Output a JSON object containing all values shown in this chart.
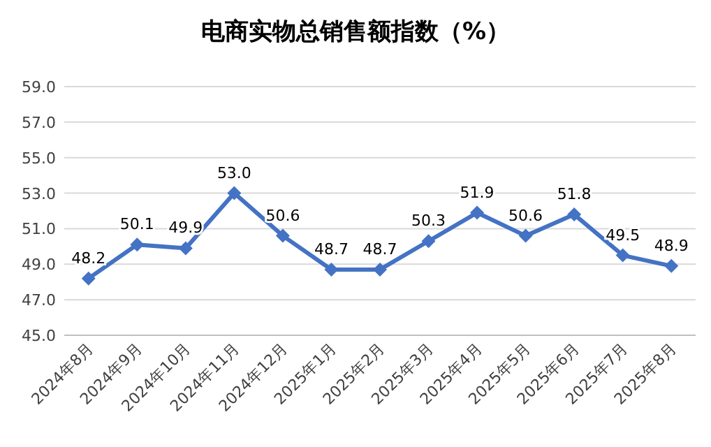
{
  "chart_data": {
    "type": "line",
    "title": "电商实物总销售额指数（%）",
    "categories": [
      "2024年8月",
      "2024年9月",
      "2024年10月",
      "2024年11月",
      "2024年12月",
      "2025年1月",
      "2025年2月",
      "2025年3月",
      "2025年4月",
      "2025年5月",
      "2025年6月",
      "2025年7月",
      "2025年8月"
    ],
    "series": [
      {
        "color": "#4472c4",
        "values": [
          48.2,
          50.1,
          49.9,
          53.0,
          50.6,
          48.7,
          48.7,
          50.3,
          51.9,
          50.6,
          51.8,
          49.5,
          48.9
        ],
        "value_labels": [
          "48.2",
          "50.1",
          "49.9",
          "53.0",
          "50.6",
          "48.7",
          "48.7",
          "50.3",
          "51.9",
          "50.6",
          "51.8",
          "49.5",
          "48.9"
        ]
      }
    ],
    "ylim": [
      45,
      59
    ],
    "yticks": [
      {
        "value": 45,
        "label": "45.0"
      },
      {
        "value": 47,
        "label": "47.0"
      },
      {
        "value": 49,
        "label": "49.0"
      },
      {
        "value": 51,
        "label": "51.0"
      },
      {
        "value": 53,
        "label": "53.0"
      },
      {
        "value": 55,
        "label": "55.0"
      },
      {
        "value": 57,
        "label": "57.0"
      },
      {
        "value": 59,
        "label": "59.0"
      }
    ],
    "grid": "y",
    "marker": "diamond",
    "line_style": "solid"
  }
}
